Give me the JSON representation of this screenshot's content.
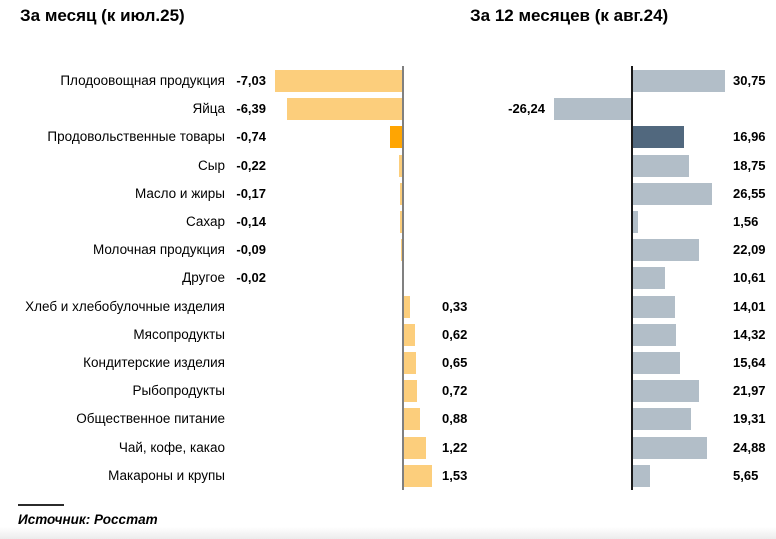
{
  "source": "Источник: Росстат",
  "colors": {
    "month_bar": "#FCCE7C",
    "month_highlight": "#FFA502",
    "year_bar": "#B2BEC8",
    "year_highlight": "#51687E",
    "axis_left": "#808080",
    "axis_right": "#1A1A1A"
  },
  "chart_data": {
    "type": "bar",
    "orientation": "horizontal",
    "grid": false,
    "legend": "none",
    "highlight_index": 2,
    "highlight_category": "Продовольственные товары",
    "categories": [
      "Плодоовощная продукция",
      "Яйца",
      "Продовольственные товары",
      "Сыр",
      "Масло и жиры",
      "Сахар",
      "Молочная продукция",
      "Другое",
      "Хлеб и хлебобулочные изделия",
      "Мясопродукты",
      "Кондитерские изделия",
      "Рыбопродукты",
      "Общественное питание",
      "Чай, кофе, какао",
      "Макароны и крупы"
    ],
    "panels": [
      {
        "title": "За месяц (к июл.25)",
        "xlim": [
          -7.5,
          2.0
        ],
        "values": [
          -7.03,
          -6.39,
          -0.74,
          -0.22,
          -0.17,
          -0.14,
          -0.09,
          -0.02,
          0.33,
          0.62,
          0.65,
          0.72,
          0.88,
          1.22,
          1.53
        ],
        "labels": [
          "-7,03",
          "-6,39",
          "-0,74",
          "-0,22",
          "-0,17",
          "-0,14",
          "-0,09",
          "-0,02",
          "0,33",
          "0,62",
          "0,65",
          "0,72",
          "0,88",
          "1,22",
          "1,53"
        ]
      },
      {
        "title": "За 12 месяцев (к авг.24)",
        "xlim": [
          -27.0,
          32.0
        ],
        "values": [
          30.75,
          -26.24,
          16.96,
          18.75,
          26.55,
          1.56,
          22.09,
          10.61,
          14.01,
          14.32,
          15.64,
          21.97,
          19.31,
          24.88,
          5.65
        ],
        "labels": [
          "30,75",
          "-26,24",
          "16,96",
          "18,75",
          "26,55",
          "1,56",
          "22,09",
          "10,61",
          "14,01",
          "14,32",
          "15,64",
          "21,97",
          "19,31",
          "24,88",
          "5,65"
        ]
      }
    ]
  }
}
